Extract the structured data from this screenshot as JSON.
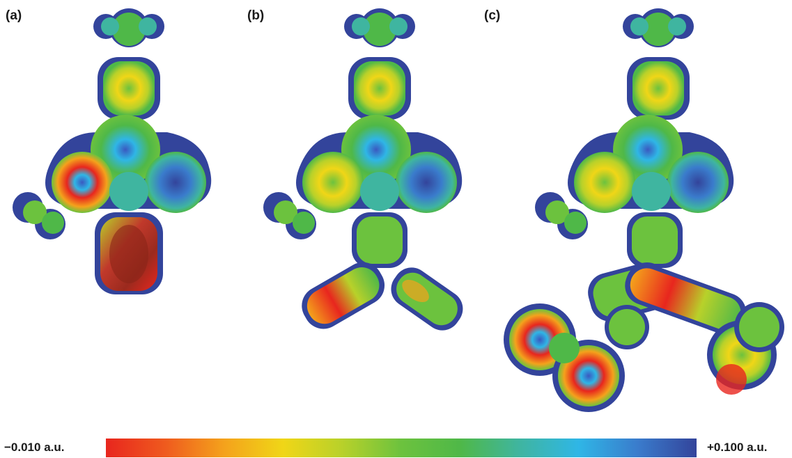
{
  "panels": [
    {
      "label": "(a)"
    },
    {
      "label": "(b)"
    },
    {
      "label": "(c)"
    }
  ],
  "colorbar": {
    "min_label": "−0.010 a.u.",
    "max_label": "+0.100 a.u.",
    "colors": [
      "#e8261e",
      "#ef5a1e",
      "#f4a21c",
      "#f0d617",
      "#b8d12a",
      "#6cc23e",
      "#4fb848",
      "#3fb5a0",
      "#2fb6e6",
      "#3a7ccc",
      "#33449b"
    ]
  }
}
